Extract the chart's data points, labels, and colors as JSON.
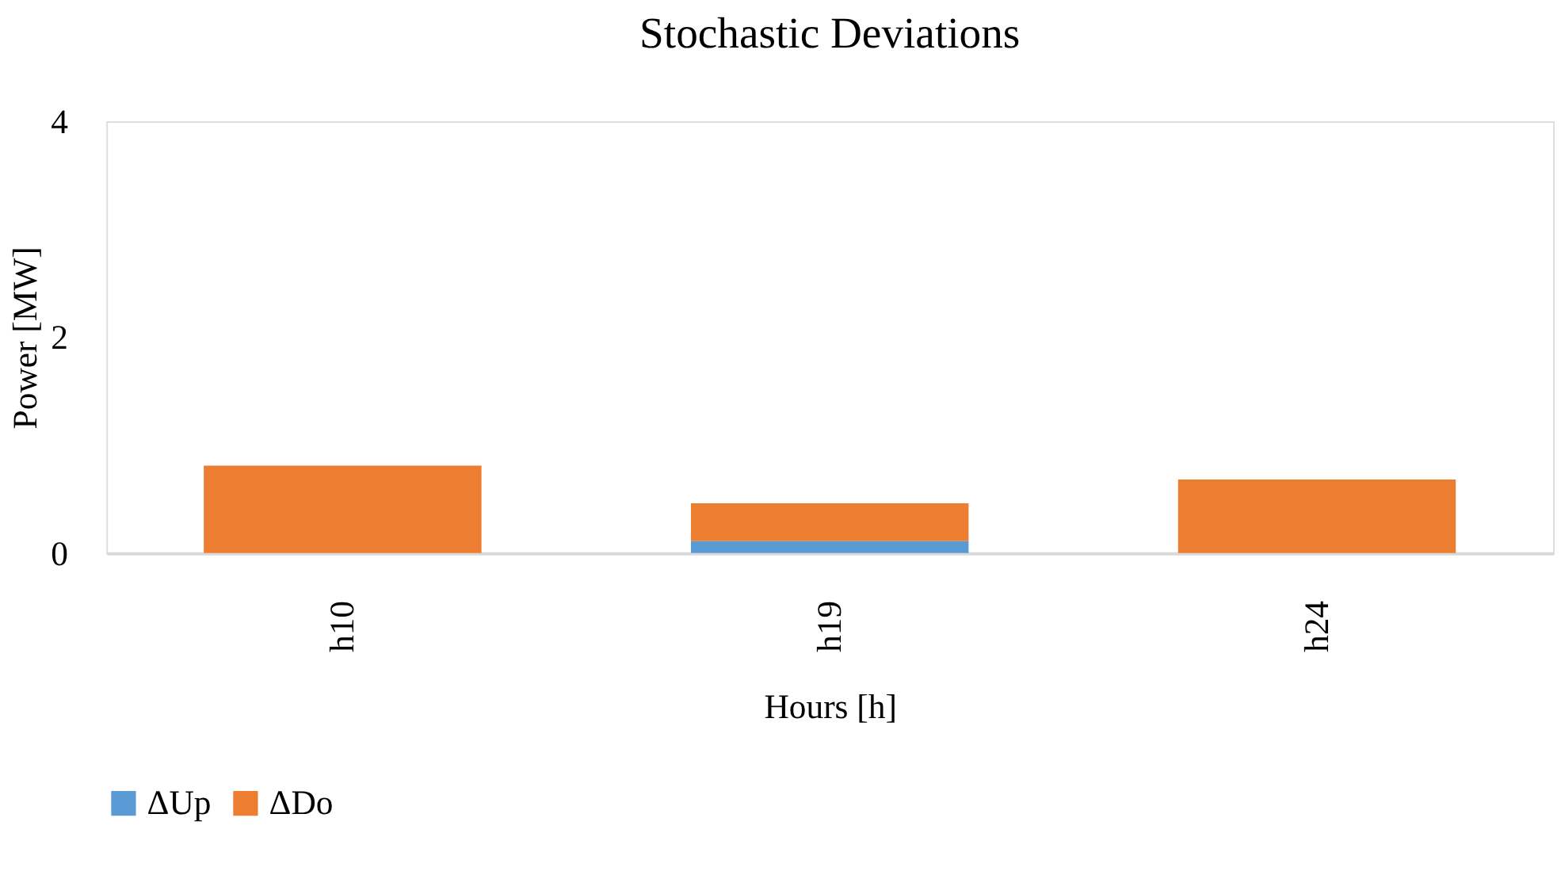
{
  "chart_data": {
    "type": "bar",
    "title": "Stochastic Deviations",
    "xlabel": "Hours [h]",
    "ylabel": "Power [MW]",
    "categories": [
      "h10",
      "h19",
      "h24"
    ],
    "stacked": true,
    "series": [
      {
        "name": "ΔUp",
        "color": "#5b9bd5",
        "values": [
          0,
          0.11,
          0
        ]
      },
      {
        "name": "ΔDo",
        "color": "#ed7d31",
        "values": [
          0.81,
          0.35,
          0.68
        ]
      }
    ],
    "ylim": [
      0,
      4
    ],
    "yticks": [
      0,
      2,
      4
    ],
    "grid": false,
    "legend": "bottom"
  }
}
